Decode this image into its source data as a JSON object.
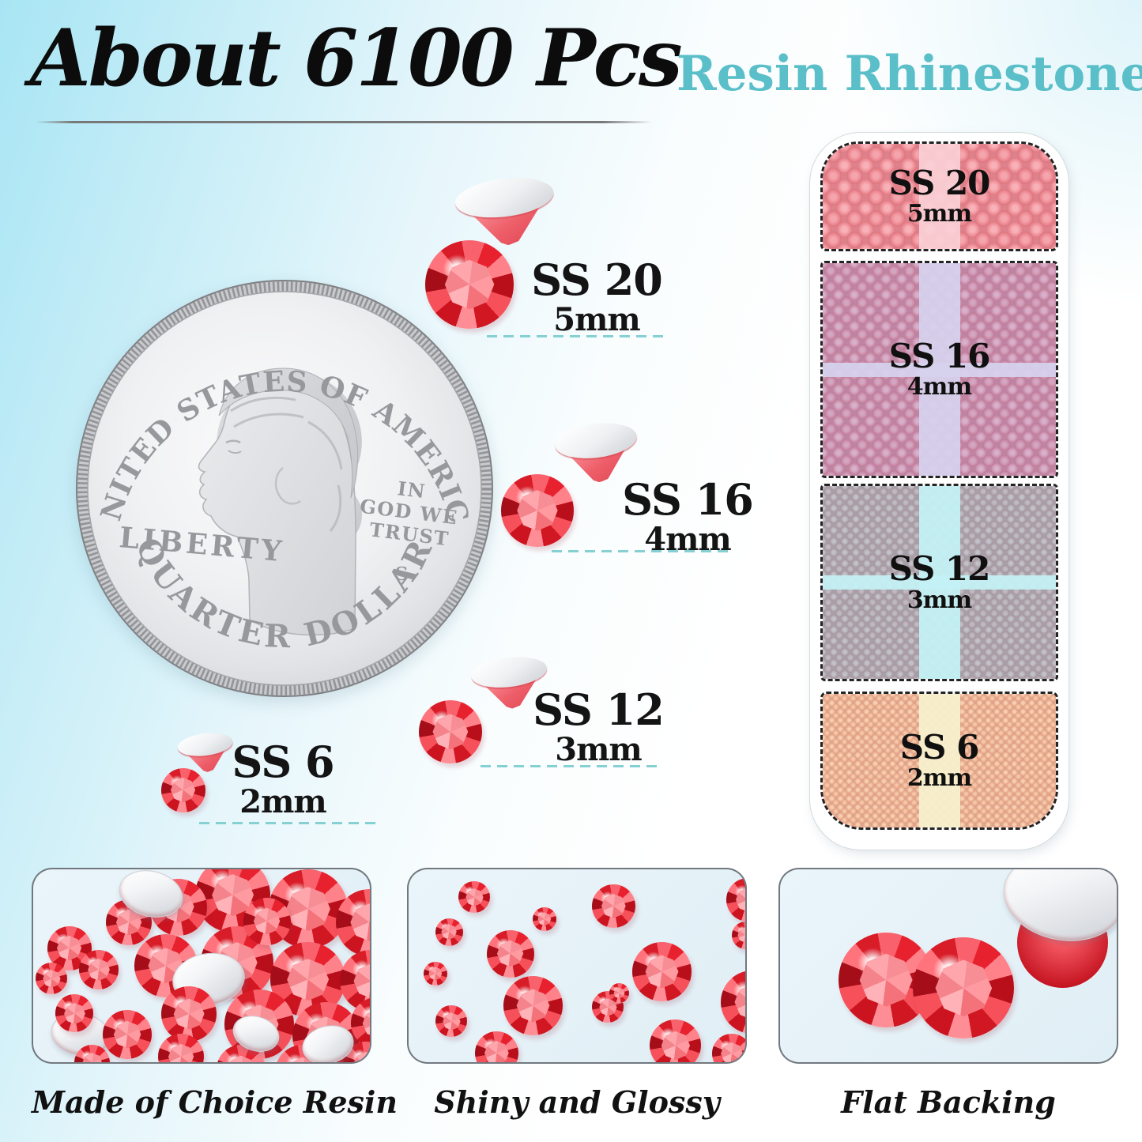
{
  "header": {
    "title": "About 6100 Pcs",
    "subtitle": "Resin Rhinestones"
  },
  "coin": {
    "top_text": "UNITED STATES OF AMERICA",
    "left_text": "LIBERTY",
    "motto_lines": [
      "IN",
      "GOD WE",
      "TRUST"
    ],
    "mint_mark": "S",
    "bottom_text": "QUARTER DOLLAR"
  },
  "size_guide": [
    {
      "label": "SS 20",
      "mm": "5mm"
    },
    {
      "label": "SS 16",
      "mm": "4mm"
    },
    {
      "label": "SS 12",
      "mm": "3mm"
    },
    {
      "label": "SS 6",
      "mm": "2mm"
    }
  ],
  "organizer": {
    "sections": [
      {
        "label": "SS 20",
        "mm": "5mm",
        "tint_rgba": "rgba(247,183,192,0.50)",
        "strip_rgba": "rgba(250,208,214,0.92)"
      },
      {
        "label": "SS 16",
        "mm": "4mm",
        "tint_rgba": "rgba(186,182,226,0.55)",
        "strip_rgba": "rgba(214,211,238,0.92)"
      },
      {
        "label": "SS 12",
        "mm": "3mm",
        "tint_rgba": "rgba(150,230,236,0.55)",
        "strip_rgba": "rgba(196,241,244,0.94)"
      },
      {
        "label": "SS 6",
        "mm": "2mm",
        "tint_rgba": "rgba(244,234,190,0.55)",
        "strip_rgba": "rgba(247,240,205,0.94)"
      }
    ]
  },
  "features": [
    {
      "caption": "Made of Choice Resin"
    },
    {
      "caption": "Shiny and Glossy"
    },
    {
      "caption": "Flat Backing"
    }
  ],
  "palette": {
    "accent_teal": "#5abfc9",
    "stone_red": "#e0242f",
    "dash_teal": "#84d0d2",
    "background_blue": "#a8e5f4",
    "coin_silver": "#d6d7da"
  }
}
